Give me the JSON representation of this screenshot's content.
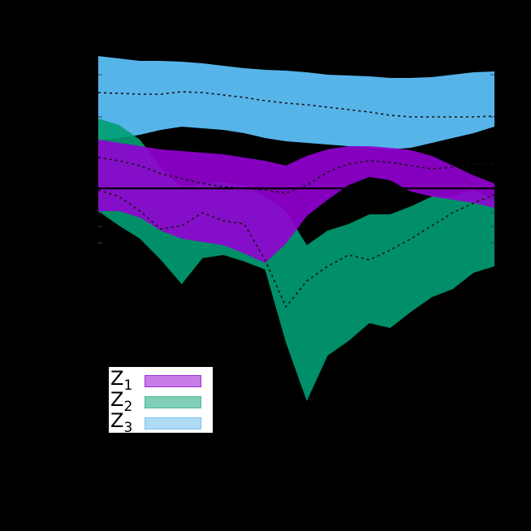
{
  "chart_data": {
    "type": "area",
    "title": "",
    "xlabel": "",
    "ylabel": "",
    "grid": false,
    "legend_position": "lower left",
    "zero_line": true,
    "x": [
      0,
      1,
      2,
      3,
      4,
      5,
      6,
      7,
      8,
      9,
      10,
      11,
      12,
      13,
      14,
      15,
      16,
      17,
      18,
      19
    ],
    "note": "y values are in pixel-derived units relative to the zero line (positive = up); the axis has no visible tick labels",
    "series": [
      {
        "name": "Z_1",
        "label_main": "Z",
        "label_sub": "1",
        "color": "#9400D3",
        "legend_fill": "#C77CE8",
        "legend_edge": "#9B30D9",
        "upper": [
          60,
          56,
          52,
          48,
          46,
          44,
          42,
          38,
          34,
          28,
          40,
          48,
          52,
          52,
          50,
          47,
          40,
          28,
          16,
          6
        ],
        "lower": [
          -28,
          -28,
          -36,
          -52,
          -62,
          -66,
          -70,
          -80,
          -92,
          -68,
          -34,
          -14,
          4,
          14,
          10,
          -4,
          -10,
          -14,
          -18,
          -24
        ],
        "mean_upper_dotted": [
          38,
          34,
          28,
          18,
          12,
          6,
          2,
          0,
          -2,
          -6,
          4,
          20,
          30,
          34,
          32,
          28,
          24,
          26,
          30,
          30
        ]
      },
      {
        "name": "Z_2",
        "label_main": "Z",
        "label_sub": "2",
        "color": "#009E73",
        "legend_fill": "#7FCFB9",
        "legend_edge": "#4DB896",
        "upper": [
          86,
          78,
          60,
          26,
          0,
          6,
          8,
          2,
          -10,
          -28,
          -70,
          -52,
          -44,
          -32,
          -32,
          -22,
          -10,
          -10,
          -2,
          -14
        ],
        "lower": [
          -28,
          -46,
          -62,
          -88,
          -118,
          -86,
          -82,
          -90,
          -100,
          -190,
          -262,
          -206,
          -188,
          -166,
          -172,
          -152,
          -134,
          -124,
          -104,
          -96
        ],
        "mean_dotted": [
          -2,
          -10,
          -28,
          -50,
          -46,
          -30,
          -40,
          -44,
          -88,
          -146,
          -114,
          -96,
          -82,
          -88,
          -76,
          -62,
          -46,
          -30,
          -18,
          -8
        ]
      },
      {
        "name": "Z_3",
        "label_main": "Z",
        "label_sub": "3",
        "color": "#56B4E9",
        "legend_fill": "#AEDBF4",
        "legend_edge": "#79C3EF",
        "upper": [
          163,
          160,
          157,
          157,
          156,
          154,
          151,
          148,
          146,
          145,
          143,
          140,
          139,
          138,
          136,
          136,
          137,
          140,
          143,
          144
        ],
        "lower": [
          60,
          62,
          66,
          72,
          76,
          74,
          72,
          68,
          62,
          58,
          56,
          54,
          52,
          50,
          48,
          50,
          56,
          62,
          68,
          76
        ],
        "mean_dotted": [
          118,
          117,
          116,
          116,
          119,
          118,
          115,
          112,
          108,
          105,
          103,
          100,
          97,
          94,
          90,
          88,
          88,
          88,
          88,
          89
        ]
      }
    ]
  },
  "legend": {
    "items": [
      {
        "main": "Z",
        "sub": "1"
      },
      {
        "main": "Z",
        "sub": "2"
      },
      {
        "main": "Z",
        "sub": "3"
      }
    ]
  }
}
